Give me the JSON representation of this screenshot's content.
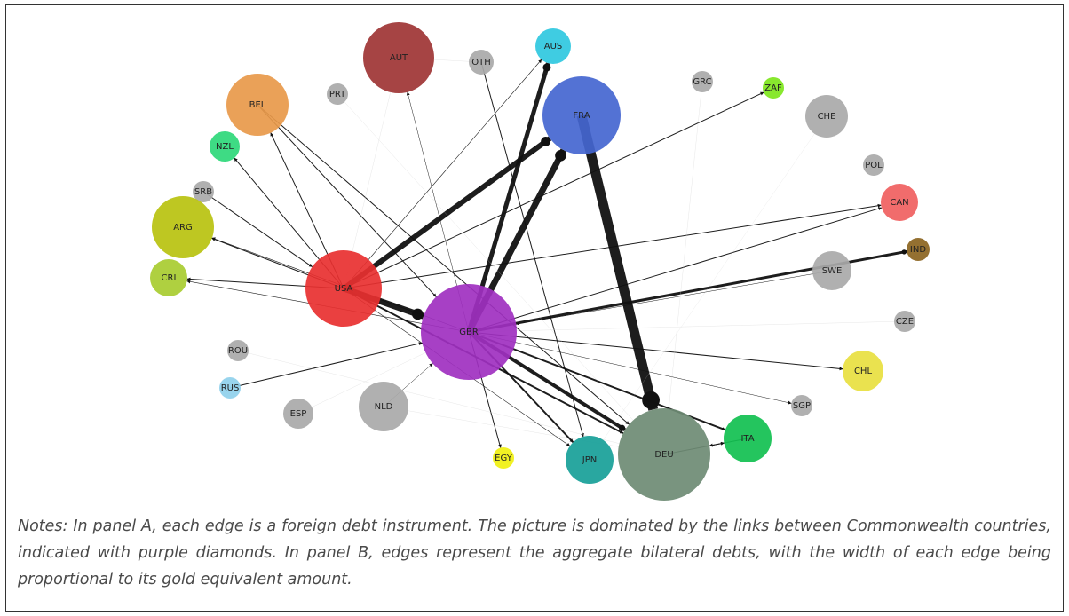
{
  "network": {
    "nodes": [
      {
        "label": "AUT",
        "color": "#9e3434"
      },
      {
        "label": "OTH",
        "color": "#a9a9a9"
      },
      {
        "label": "AUS",
        "color": "#2fc8e0"
      },
      {
        "label": "PRT",
        "color": "#a9a9a9"
      },
      {
        "label": "BEL",
        "color": "#e8994a"
      },
      {
        "label": "GRC",
        "color": "#a9a9a9"
      },
      {
        "label": "ZAF",
        "color": "#7ee61c"
      },
      {
        "label": "FRA",
        "color": "#4466d0"
      },
      {
        "label": "CHE",
        "color": "#a9a9a9"
      },
      {
        "label": "NZL",
        "color": "#2ed87a"
      },
      {
        "label": "POL",
        "color": "#a9a9a9"
      },
      {
        "label": "SRB",
        "color": "#a9a9a9"
      },
      {
        "label": "CAN",
        "color": "#f06060"
      },
      {
        "label": "ARG",
        "color": "#b8c20f"
      },
      {
        "label": "IND",
        "color": "#8b6420"
      },
      {
        "label": "CRI",
        "color": "#a8cc30"
      },
      {
        "label": "SWE",
        "color": "#a9a9a9"
      },
      {
        "label": "USA",
        "color": "#e83030"
      },
      {
        "label": "GBR",
        "color": "#a030c0"
      },
      {
        "label": "CZE",
        "color": "#a9a9a9"
      },
      {
        "label": "ROU",
        "color": "#a9a9a9"
      },
      {
        "label": "RUS",
        "color": "#8fd0ec"
      },
      {
        "label": "CHL",
        "color": "#e8e040"
      },
      {
        "label": "NLD",
        "color": "#a9a9a9"
      },
      {
        "label": "SGP",
        "color": "#a9a9a9"
      },
      {
        "label": "ESP",
        "color": "#a9a9a9"
      },
      {
        "label": "ITA",
        "color": "#11c050"
      },
      {
        "label": "EGY",
        "color": "#f0f010"
      },
      {
        "label": "JPN",
        "color": "#17a098"
      },
      {
        "label": "DEU",
        "color": "#6e8b74"
      }
    ]
  },
  "notes": "Notes: In panel A, each edge is a foreign debt instrument. The picture is dominated by the links between Commonwealth countries, indicated with purple diamonds. In panel B, edges represent the aggregate bilateral debts, with the width of each edge being proportional to its gold equivalent amount."
}
